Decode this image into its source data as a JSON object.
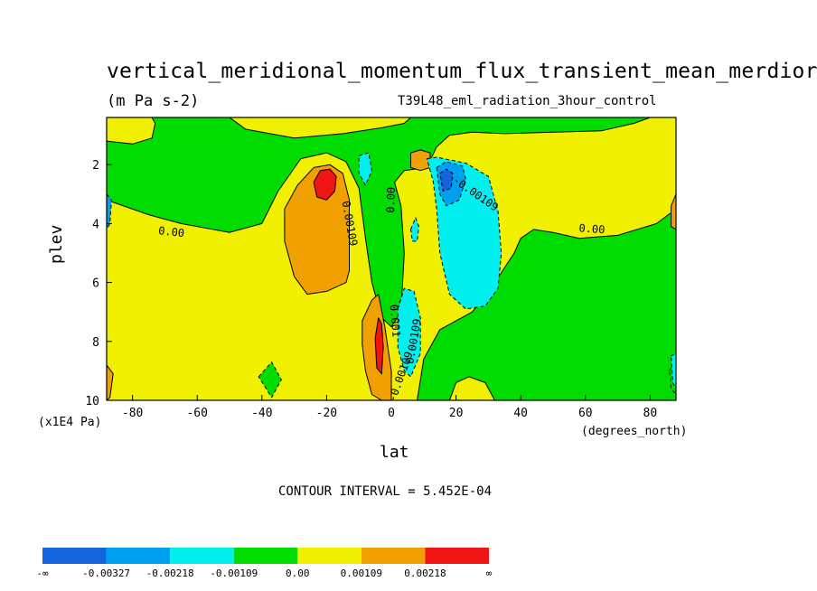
{
  "chart_data": {
    "type": "contour",
    "title": "vertical_meridional_momentum_flux_transient_mean_merdior",
    "units": "(m Pa s-2)",
    "run_label": "T39L48_eml_radiation_3hour_control",
    "xlabel": "lat",
    "x_units": "(degrees_north)",
    "ylabel": "plev",
    "y_units": "(x1E4 Pa)",
    "xlim": [
      -88,
      88
    ],
    "ylim": [
      10,
      0.4
    ],
    "x_ticks": [
      -80,
      -60,
      -40,
      -20,
      0,
      20,
      40,
      60,
      80
    ],
    "y_ticks": [
      2,
      4,
      6,
      8,
      10
    ],
    "contour_interval_label": "CONTOUR INTERVAL = 5.452E-04",
    "colorbar": {
      "colors": [
        "#1464dc",
        "#00a0f0",
        "#00f0f0",
        "#00dc00",
        "#f0f000",
        "#f0a000",
        "#f01414"
      ],
      "labels": [
        "-∞",
        "-0.00327",
        "-0.00218",
        "-0.00109",
        "0.00",
        "0.00109",
        "0.00218",
        "∞"
      ]
    },
    "contour_labels": [
      {
        "text": "0.00",
        "lat": -68,
        "plev": 4.3,
        "rot": 6
      },
      {
        "text": "0.00109",
        "lat": -13,
        "plev": 4.0,
        "rot": 80
      },
      {
        "text": "0.00",
        "lat": 0,
        "plev": 3.2,
        "rot": -88
      },
      {
        "text": "-0.00109",
        "lat": 26,
        "plev": 3.0,
        "rot": 35
      },
      {
        "text": "0.00",
        "lat": 62,
        "plev": 4.2,
        "rot": 4
      },
      {
        "text": "0.001",
        "lat": 1,
        "plev": 7.3,
        "rot": 85
      },
      {
        "text": "0.00109",
        "lat": 7,
        "plev": 8.0,
        "rot": -80
      },
      {
        "text": "-0.00109",
        "lat": 3,
        "plev": 9.2,
        "rot": -70
      }
    ],
    "regions": [
      {
        "level": "0 to 0.00109",
        "color": "#f0f000",
        "poly": [
          [
            -88,
            10
          ],
          [
            -88,
            3.2
          ],
          [
            -75,
            3.7
          ],
          [
            -65,
            4.0
          ],
          [
            -50,
            4.3
          ],
          [
            -40,
            4.0
          ],
          [
            -35,
            2.9
          ],
          [
            -28,
            1.8
          ],
          [
            -20,
            1.6
          ],
          [
            -14,
            1.9
          ],
          [
            -10,
            2.8
          ],
          [
            -8,
            4.5
          ],
          [
            -6,
            6.0
          ],
          [
            -3,
            7.2
          ],
          [
            0,
            7.5
          ],
          [
            3,
            7.0
          ],
          [
            4,
            5.0
          ],
          [
            3,
            3.4
          ],
          [
            1,
            2.6
          ],
          [
            4,
            2.2
          ],
          [
            11,
            2.1
          ],
          [
            14,
            1.4
          ],
          [
            18,
            1.0
          ],
          [
            25,
            0.9
          ],
          [
            35,
            0.95
          ],
          [
            50,
            0.9
          ],
          [
            65,
            0.85
          ],
          [
            75,
            0.6
          ],
          [
            80,
            0.4
          ],
          [
            88,
            0.4
          ],
          [
            88,
            3.5
          ],
          [
            82,
            4.0
          ],
          [
            70,
            4.4
          ],
          [
            58,
            4.5
          ],
          [
            50,
            4.3
          ],
          [
            44,
            4.2
          ],
          [
            40,
            4.5
          ],
          [
            38,
            5.0
          ],
          [
            32,
            6.0
          ],
          [
            25,
            7.0
          ],
          [
            15,
            7.6
          ],
          [
            10,
            8.6
          ],
          [
            8,
            10
          ]
        ]
      },
      {
        "level": "0 to 0.00109",
        "color": "#f0f000",
        "poly": [
          [
            -50,
            0.4
          ],
          [
            -45,
            0.8
          ],
          [
            -30,
            1.1
          ],
          [
            -15,
            0.95
          ],
          [
            -3,
            0.75
          ],
          [
            4,
            0.6
          ],
          [
            6,
            0.4
          ]
        ]
      },
      {
        "level": "0 to 0.00109",
        "color": "#f0f000",
        "poly": [
          [
            18,
            10
          ],
          [
            20,
            9.4
          ],
          [
            24,
            9.2
          ],
          [
            29,
            9.4
          ],
          [
            32,
            10
          ]
        ]
      },
      {
        "level": "0 to 0.00109",
        "color": "#f0f000",
        "poly": [
          [
            -88,
            0.4
          ],
          [
            -88,
            1.2
          ],
          [
            -80,
            1.3
          ],
          [
            -74,
            1.1
          ],
          [
            -73,
            0.6
          ],
          [
            -74,
            0.4
          ]
        ]
      },
      {
        "level": "0.00109 to 0.00218",
        "color": "#f0a000",
        "poly": [
          [
            -33,
            3.5
          ],
          [
            -29,
            2.7
          ],
          [
            -24,
            2.1
          ],
          [
            -19,
            2.0
          ],
          [
            -15,
            2.3
          ],
          [
            -13,
            3.2
          ],
          [
            -13,
            4.4
          ],
          [
            -13,
            5.6
          ],
          [
            -14,
            6.0
          ],
          [
            -20,
            6.3
          ],
          [
            -26,
            6.4
          ],
          [
            -30,
            5.8
          ],
          [
            -33,
            4.6
          ]
        ]
      },
      {
        "level": "0.00109 to 0.00218",
        "color": "#f0a000",
        "poly": [
          [
            -9,
            7.3
          ],
          [
            -6,
            6.6
          ],
          [
            -4,
            6.4
          ],
          [
            -2,
            7.5
          ],
          [
            0,
            9.0
          ],
          [
            0,
            10
          ],
          [
            -3,
            10
          ],
          [
            -6,
            9.8
          ],
          [
            -8,
            9.0
          ],
          [
            -9,
            8.1
          ]
        ]
      },
      {
        "level": "0.00109 to 0.00218",
        "color": "#f0a000",
        "poly": [
          [
            6,
            1.6
          ],
          [
            9,
            1.5
          ],
          [
            12,
            1.6
          ],
          [
            12,
            2.1
          ],
          [
            9,
            2.2
          ],
          [
            6,
            2.1
          ]
        ]
      },
      {
        "level": "0.00109 to 0.00218",
        "color": "#f0a000",
        "poly": [
          [
            -88,
            8.8
          ],
          [
            -86,
            9.1
          ],
          [
            -87,
            9.9
          ],
          [
            -88,
            10
          ]
        ]
      },
      {
        "level": "0.00109 to 0.00218",
        "color": "#f0a000",
        "poly": [
          [
            88,
            3.0
          ],
          [
            86.5,
            3.4
          ],
          [
            86.5,
            4.1
          ],
          [
            88,
            4.2
          ]
        ]
      },
      {
        "level": "> 0.00218",
        "color": "#f01414",
        "poly": [
          [
            -24,
            2.6
          ],
          [
            -22,
            2.2
          ],
          [
            -19,
            2.15
          ],
          [
            -17,
            2.4
          ],
          [
            -17.5,
            2.9
          ],
          [
            -20,
            3.2
          ],
          [
            -23,
            3.1
          ]
        ]
      },
      {
        "level": "> 0.00218",
        "color": "#f01414",
        "poly": [
          [
            -5,
            7.9
          ],
          [
            -4,
            7.2
          ],
          [
            -3,
            7.4
          ],
          [
            -2.5,
            8.2
          ],
          [
            -3,
            9.1
          ],
          [
            -4.5,
            8.9
          ]
        ]
      },
      {
        "level": "-0.00109 to 0",
        "color": "#00dc00",
        "poly": [
          [
            -41,
            9.2
          ],
          [
            -37,
            8.7
          ],
          [
            -34,
            9.3
          ],
          [
            -37,
            9.9
          ]
        ]
      },
      {
        "level": "-0.00109 to 0",
        "color": "#00dc00",
        "poly": [
          [
            86,
            9.0
          ],
          [
            88,
            8.6
          ],
          [
            88,
            9.8
          ],
          [
            86.5,
            9.6
          ]
        ]
      },
      {
        "level": "-0.00218 to -0.00109",
        "color": "#00f0f0",
        "poly": [
          [
            11,
            1.8
          ],
          [
            14,
            1.75
          ],
          [
            23,
            1.95
          ],
          [
            30,
            2.4
          ],
          [
            33,
            3.6
          ],
          [
            34,
            5.0
          ],
          [
            33,
            6.2
          ],
          [
            29,
            6.8
          ],
          [
            23,
            6.9
          ],
          [
            18,
            6.4
          ],
          [
            15,
            5.0
          ],
          [
            14,
            3.5
          ],
          [
            13,
            2.6
          ]
        ]
      },
      {
        "level": "-0.00218 to -0.00109",
        "color": "#00f0f0",
        "poly": [
          [
            -10,
            1.7
          ],
          [
            -7,
            1.6
          ],
          [
            -6,
            2.2
          ],
          [
            -8,
            2.7
          ],
          [
            -10,
            2.3
          ]
        ]
      },
      {
        "level": "-0.00218 to -0.00109",
        "color": "#00f0f0",
        "poly": [
          [
            2,
            6.9
          ],
          [
            4,
            6.2
          ],
          [
            7,
            6.3
          ],
          [
            9,
            7.2
          ],
          [
            9,
            8.4
          ],
          [
            6,
            9.2
          ],
          [
            4,
            9.0
          ],
          [
            2,
            8.2
          ]
        ]
      },
      {
        "level": "-0.00218 to -0.00109",
        "color": "#00f0f0",
        "poly": [
          [
            6,
            4.2
          ],
          [
            7.5,
            3.8
          ],
          [
            8.5,
            4.1
          ],
          [
            8,
            4.6
          ],
          [
            6.5,
            4.6
          ]
        ]
      },
      {
        "level": "-0.00218 to -0.00109",
        "color": "#00f0f0",
        "poly": [
          [
            86.5,
            8.5
          ],
          [
            88,
            8.4
          ],
          [
            88,
            9.6
          ],
          [
            87,
            9.4
          ]
        ]
      },
      {
        "level": "-0.00327 to -0.00218",
        "color": "#00a0f0",
        "poly": [
          [
            14,
            2.1
          ],
          [
            17,
            1.9
          ],
          [
            22,
            2.05
          ],
          [
            23,
            2.5
          ],
          [
            21,
            3.2
          ],
          [
            17,
            3.4
          ],
          [
            15,
            3.0
          ]
        ]
      },
      {
        "level": "-0.00327 to -0.00218",
        "color": "#00a0f0",
        "poly": [
          [
            -88,
            3.0
          ],
          [
            -86.5,
            3.2
          ],
          [
            -87,
            4.0
          ],
          [
            -88,
            4.2
          ]
        ]
      },
      {
        "level": "< -0.00327",
        "color": "#1464dc",
        "poly": [
          [
            15,
            2.3
          ],
          [
            17,
            2.15
          ],
          [
            19,
            2.3
          ],
          [
            18.5,
            2.8
          ],
          [
            16,
            2.9
          ]
        ]
      }
    ]
  }
}
